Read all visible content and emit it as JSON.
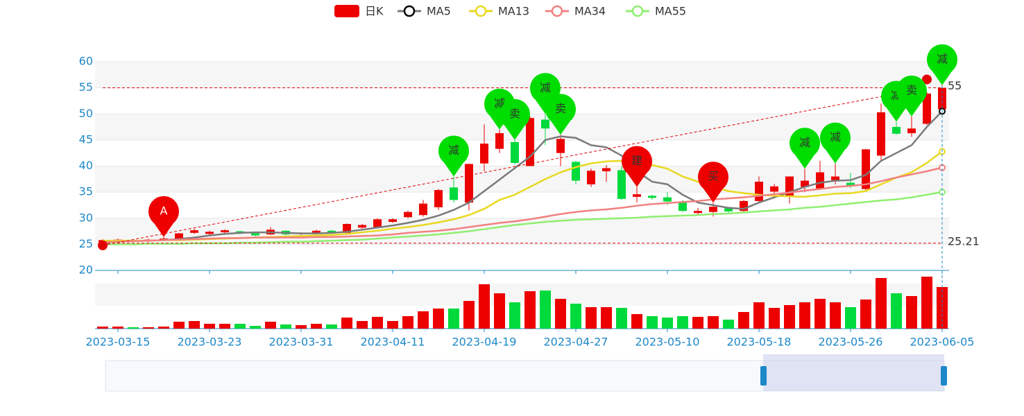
{
  "chart_data": {
    "type": "candlestick",
    "name": "日K",
    "up_color": "#ec0000",
    "down_color": "#00da3c",
    "categories": [
      null,
      "2023-03-15",
      null,
      null,
      null,
      null,
      null,
      "2023-03-23",
      null,
      null,
      null,
      null,
      null,
      "2023-03-31",
      null,
      null,
      null,
      null,
      null,
      "2023-04-11",
      null,
      null,
      null,
      null,
      null,
      "2023-04-19",
      null,
      null,
      null,
      null,
      null,
      "2023-04-27",
      null,
      null,
      null,
      null,
      null,
      "2023-05-10",
      null,
      null,
      null,
      null,
      null,
      "2023-05-18",
      null,
      null,
      null,
      null,
      null,
      "2023-05-26",
      null,
      null,
      null,
      null,
      null,
      "2023-06-05"
    ],
    "open": [
      25.4,
      25.7,
      25.8,
      25.6,
      25.8,
      26.0,
      27.2,
      27.0,
      27.3,
      27.5,
      27.1,
      26.9,
      27.6,
      27.0,
      27.0,
      27.6,
      27.2,
      28.2,
      28.3,
      29.3,
      30.2,
      30.6,
      32.1,
      35.9,
      33.0,
      40.5,
      43.3,
      44.6,
      40.0,
      48.9,
      42.5,
      40.8,
      36.5,
      39.0,
      39.2,
      34.1,
      34.3,
      34.0,
      33.0,
      31.0,
      31.2,
      31.9,
      31.4,
      33.3,
      35.1,
      34.3,
      36.0,
      35.7,
      37.3,
      36.8,
      35.6,
      42.0,
      47.5,
      46.3,
      48.1,
      50.9
    ],
    "close": [
      25.8,
      25.9,
      25.6,
      25.9,
      26.1,
      27.1,
      27.7,
      27.4,
      27.7,
      27.1,
      26.7,
      27.8,
      26.9,
      27.1,
      27.6,
      27.2,
      28.9,
      28.7,
      29.8,
      29.8,
      31.2,
      32.8,
      35.4,
      33.5,
      40.4,
      44.3,
      46.3,
      40.6,
      49.2,
      47.2,
      45.2,
      37.2,
      39.1,
      39.6,
      33.7,
      34.6,
      33.9,
      33.2,
      31.4,
      31.4,
      32.2,
      31.3,
      33.3,
      37.0,
      36.1,
      38.0,
      37.2,
      38.8,
      38.0,
      36.2,
      43.2,
      50.3,
      46.2,
      47.2,
      53.9,
      55.0
    ],
    "low": [
      25.0,
      25.5,
      25.4,
      25.4,
      25.6,
      25.9,
      27.0,
      26.8,
      27.1,
      26.9,
      26.5,
      26.8,
      26.7,
      26.8,
      26.9,
      27.0,
      27.1,
      28.0,
      28.2,
      29.1,
      30.0,
      30.3,
      31.6,
      33.0,
      31.5,
      39.0,
      42.5,
      40.3,
      40.0,
      44.0,
      40.0,
      36.5,
      36.0,
      37.0,
      33.5,
      33.0,
      33.5,
      32.5,
      31.2,
      30.5,
      30.3,
      31.0,
      31.2,
      33.0,
      34.0,
      32.8,
      35.0,
      35.5,
      36.5,
      35.8,
      35.2,
      41.0,
      46.0,
      45.6,
      47.9,
      50.5
    ],
    "high": [
      26.0,
      26.1,
      26.0,
      26.1,
      26.4,
      27.2,
      28.0,
      27.6,
      27.9,
      27.6,
      27.2,
      28.3,
      27.7,
      27.3,
      27.8,
      27.8,
      29.0,
      28.9,
      30.0,
      30.0,
      31.5,
      33.5,
      35.6,
      38.0,
      40.5,
      48.0,
      47.0,
      45.0,
      49.5,
      50.0,
      46.0,
      41.0,
      39.5,
      40.2,
      40.0,
      36.0,
      34.5,
      35.0,
      33.5,
      32.0,
      33.0,
      32.2,
      33.5,
      38.0,
      36.6,
      38.0,
      39.5,
      41.0,
      40.5,
      38.7,
      43.3,
      52.0,
      48.5,
      49.5,
      54.2,
      55.5
    ],
    "ylim": [
      20,
      60
    ],
    "yticks": [
      20,
      25,
      30,
      35,
      40,
      45,
      50,
      55,
      60
    ],
    "lines": [
      {
        "name": "MA5",
        "color": "#7a7a7a",
        "values": [
          25.5,
          25.6,
          25.6,
          25.7,
          25.8,
          26.0,
          26.3,
          26.7,
          27.0,
          27.2,
          27.3,
          27.3,
          27.2,
          27.1,
          27.1,
          27.2,
          27.4,
          27.8,
          28.2,
          28.6,
          29.1,
          29.7,
          30.5,
          31.6,
          33.0,
          35.2,
          37.4,
          39.6,
          41.8,
          45.0,
          45.7,
          45.4,
          44.0,
          43.6,
          42.0,
          39.0,
          37.0,
          36.5,
          34.5,
          33.0,
          32.5,
          32.0,
          31.8,
          33.0,
          34.0,
          35.0,
          36.0,
          36.8,
          37.2,
          37.3,
          38.3,
          41.0,
          42.5,
          44.0,
          47.5,
          50.5
        ]
      },
      {
        "name": "MA13",
        "color": "#e8d920",
        "values": [
          25.7,
          25.7,
          25.7,
          25.7,
          25.8,
          25.8,
          25.9,
          26.0,
          26.1,
          26.2,
          26.3,
          26.4,
          26.5,
          26.6,
          26.7,
          26.8,
          27.0,
          27.3,
          27.6,
          28.0,
          28.3,
          28.7,
          29.2,
          29.8,
          30.6,
          31.8,
          33.5,
          34.5,
          36.0,
          37.5,
          38.8,
          39.8,
          40.5,
          40.9,
          41.0,
          40.7,
          40.2,
          39.5,
          38.0,
          37.0,
          36.0,
          35.2,
          34.8,
          34.5,
          34.3,
          34.2,
          34.1,
          34.4,
          34.7,
          34.8,
          35.2,
          36.5,
          37.8,
          38.8,
          40.6,
          42.8
        ]
      },
      {
        "name": "MA34",
        "color": "#f28080",
        "values": [
          25.4,
          25.5,
          25.6,
          25.7,
          25.8,
          25.9,
          26.0,
          26.1,
          26.2,
          26.2,
          26.3,
          26.3,
          26.3,
          26.3,
          26.4,
          26.4,
          26.5,
          26.6,
          26.7,
          26.9,
          27.2,
          27.4,
          27.6,
          27.9,
          28.3,
          28.7,
          29.1,
          29.4,
          29.8,
          30.3,
          30.8,
          31.2,
          31.5,
          31.7,
          32.0,
          32.4,
          32.7,
          32.9,
          33.1,
          33.3,
          33.6,
          33.8,
          34.0,
          34.3,
          34.6,
          34.9,
          35.3,
          35.6,
          36.0,
          36.2,
          36.5,
          37.1,
          37.8,
          38.4,
          39.0,
          39.7
        ]
      },
      {
        "name": "MA55",
        "color": "#8fef70",
        "values": [
          25.0,
          25.0,
          25.0,
          25.1,
          25.1,
          25.1,
          25.2,
          25.2,
          25.2,
          25.3,
          25.3,
          25.4,
          25.5,
          25.5,
          25.6,
          25.7,
          25.8,
          25.9,
          26.1,
          26.3,
          26.5,
          26.7,
          26.9,
          27.2,
          27.5,
          27.9,
          28.3,
          28.7,
          29.0,
          29.3,
          29.5,
          29.7,
          29.8,
          29.9,
          30.0,
          30.1,
          30.3,
          30.4,
          30.5,
          30.6,
          30.8,
          30.9,
          31.1,
          31.3,
          31.5,
          31.7,
          32.0,
          32.2,
          32.5,
          32.8,
          33.1,
          33.4,
          33.6,
          34.0,
          34.5,
          35.0
        ]
      }
    ],
    "volume": {
      "ylim": [
        0,
        80
      ],
      "values": [
        3,
        3,
        2,
        2,
        3,
        10,
        11,
        7,
        7,
        7,
        4,
        10,
        6,
        5,
        7,
        6,
        16,
        11,
        17,
        11,
        18,
        25,
        29,
        29,
        40,
        64,
        51,
        38,
        54,
        55,
        43,
        36,
        31,
        31,
        30,
        21,
        18,
        16,
        18,
        17,
        18,
        13,
        24,
        38,
        30,
        34,
        38,
        43,
        38,
        31,
        42,
        73,
        51,
        47,
        75,
        60
      ]
    },
    "mark_lines": [
      55,
      25.21
    ],
    "mark_line_color": "#e00000",
    "trend_line": {
      "from_index": 0,
      "from": 24.8,
      "to_index": 54,
      "to": 55
    },
    "points": [
      {
        "index": 0,
        "value": 24.8
      },
      {
        "index": 54,
        "value": 56.6
      }
    ],
    "markers": [
      {
        "index": 4,
        "value": 26.4,
        "label": "A",
        "color": "#ee0000"
      },
      {
        "index": 23,
        "value": 38.0,
        "label": "减",
        "color": "#00dd00"
      },
      {
        "index": 26,
        "value": 47.0,
        "label": "减",
        "color": "#00dd00"
      },
      {
        "index": 27,
        "value": 45.0,
        "label": "卖",
        "color": "#00dd00"
      },
      {
        "index": 29,
        "value": 50.0,
        "label": "减",
        "color": "#00dd00"
      },
      {
        "index": 30,
        "value": 46.0,
        "label": "卖",
        "color": "#00dd00"
      },
      {
        "index": 35,
        "value": 36.0,
        "label": "建",
        "color": "#ee0000"
      },
      {
        "index": 40,
        "value": 33.0,
        "label": "买",
        "color": "#ee0000"
      },
      {
        "index": 46,
        "value": 39.5,
        "label": "减",
        "color": "#00dd00"
      },
      {
        "index": 48,
        "value": 40.5,
        "label": "减",
        "color": "#00dd00"
      },
      {
        "index": 52,
        "value": 48.5,
        "label": "减",
        "color": "#00dd00"
      },
      {
        "index": 53,
        "value": 49.5,
        "label": "卖",
        "color": "#00dd00"
      },
      {
        "index": 55,
        "value": 55.5,
        "label": "减",
        "color": "#00dd00"
      }
    ]
  }
}
